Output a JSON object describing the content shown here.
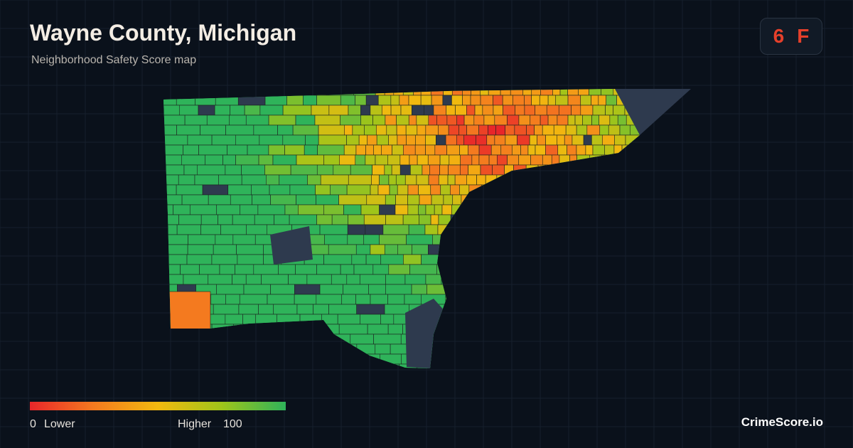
{
  "header": {
    "title": "Wayne County, Michigan",
    "subtitle": "Neighborhood Safety Score map"
  },
  "badge": {
    "score": "6",
    "grade": "F"
  },
  "legend": {
    "min": 0,
    "min_label": "Lower",
    "max_label": "Higher",
    "max": 100,
    "colors": [
      "#e8262a",
      "#f47a1f",
      "#f2b90f",
      "#9fc51a",
      "#2fb35a"
    ]
  },
  "brand": "CrimeScore.io"
}
